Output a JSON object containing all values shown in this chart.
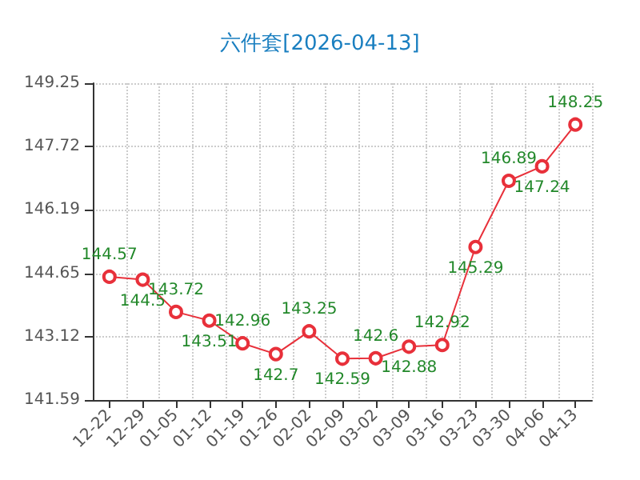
{
  "chart_data": {
    "type": "line",
    "title": "六件套[2026-04-13]",
    "categories": [
      "12-22",
      "12-29",
      "01-05",
      "01-12",
      "01-19",
      "01-26",
      "02-02",
      "02-09",
      "03-02",
      "03-09",
      "03-16",
      "03-23",
      "03-30",
      "04-06",
      "04-13"
    ],
    "series": [
      {
        "color": "#e8303a",
        "values": [
          144.57,
          144.5,
          143.72,
          143.51,
          142.96,
          142.7,
          143.25,
          142.59,
          142.6,
          142.88,
          142.92,
          145.29,
          146.89,
          147.24,
          148.25
        ]
      }
    ],
    "ylim": [
      141.59,
      149.25
    ],
    "yticks": [
      141.59,
      143.12,
      144.65,
      146.19,
      147.72,
      149.25
    ],
    "grid": true,
    "marker": "circle",
    "line_style": "solid",
    "data_labels": true
  }
}
